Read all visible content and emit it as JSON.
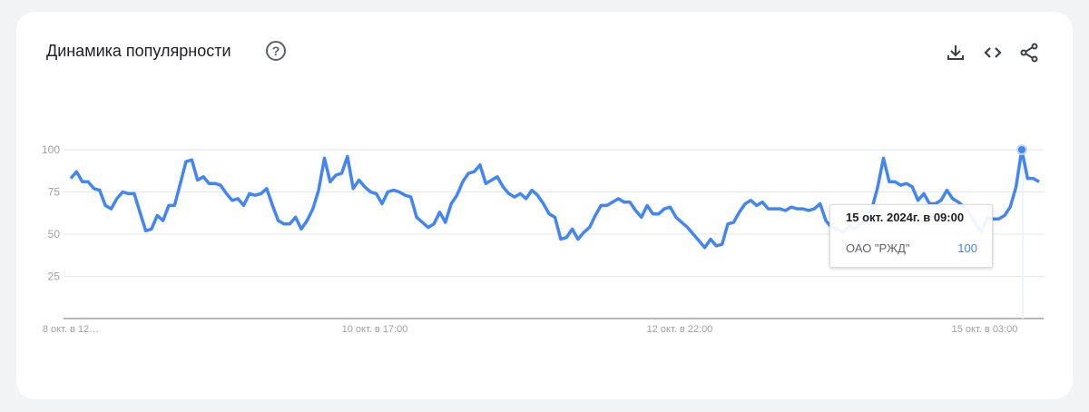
{
  "header": {
    "title": "Динамика популярности",
    "help_icon": "help-circle-icon",
    "actions": [
      "download-icon",
      "embed-code-icon",
      "share-icon"
    ]
  },
  "chart_data": {
    "type": "line",
    "title": "",
    "xlabel": "",
    "ylabel": "",
    "ylim": [
      0,
      100
    ],
    "yticks": [
      "25",
      "50",
      "75",
      "100"
    ],
    "xtick_labels": [
      "8 окт. в 12…",
      "10 окт. в 17:00",
      "12 окт. в 22:00",
      "15 окт. в 03:00"
    ],
    "grid": true,
    "color": "#4285f4",
    "series": [
      {
        "name": "ОАО \"РЖД\"",
        "values": [
          83,
          87,
          81,
          81,
          77,
          76,
          67,
          65,
          71,
          75,
          74,
          74,
          63,
          52,
          53,
          61,
          58,
          67,
          67,
          80,
          93,
          94,
          82,
          84,
          80,
          80,
          79,
          74,
          70,
          71,
          67,
          74,
          73,
          74,
          77,
          67,
          58,
          56,
          56,
          60,
          53,
          58,
          65,
          76,
          95,
          81,
          85,
          86,
          96,
          77,
          82,
          78,
          75,
          74,
          68,
          75,
          76,
          75,
          73,
          72,
          60,
          57,
          54,
          56,
          63,
          57,
          68,
          73,
          81,
          86,
          87,
          91,
          80,
          82,
          84,
          78,
          74,
          72,
          74,
          71,
          76,
          73,
          68,
          62,
          60,
          47,
          48,
          53,
          47,
          51,
          54,
          61,
          67,
          67,
          69,
          71,
          69,
          69,
          64,
          60,
          67,
          62,
          62,
          65,
          66,
          60,
          57,
          54,
          50,
          46,
          42,
          47,
          43,
          44,
          56,
          57,
          63,
          68,
          70,
          67,
          69,
          65,
          65,
          65,
          64,
          66,
          65,
          65,
          64,
          65,
          68,
          58,
          54,
          53,
          51,
          55,
          53,
          56,
          57,
          65,
          78,
          95,
          81,
          81,
          79,
          80,
          78,
          70,
          74,
          68,
          68,
          70,
          76,
          71,
          69,
          66,
          62,
          56,
          51,
          60,
          59,
          59,
          61,
          66,
          78,
          100,
          83,
          83,
          81
        ]
      }
    ],
    "highlight": {
      "date": "15 окт. 2024г. в 09:00",
      "series": "ОАО \"РЖД\"",
      "value": "100"
    }
  }
}
